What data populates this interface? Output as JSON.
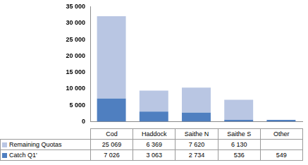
{
  "chart_data": {
    "type": "bar",
    "stacked": true,
    "grid": false,
    "categories": [
      "Cod",
      "Haddock",
      "Saithe N",
      "Saithe S",
      "Other"
    ],
    "series": [
      {
        "name": "Catch Q1'",
        "color": "#4f7fc0",
        "values": [
          7026,
          3063,
          2734,
          536,
          549
        ],
        "value_labels": [
          "7 026",
          "3 063",
          "2 734",
          "536",
          "549"
        ]
      },
      {
        "name": "Remaining Quotas",
        "color": "#b9c6e3",
        "values": [
          25069,
          6369,
          7620,
          6130,
          null
        ],
        "value_labels": [
          "25 069",
          "6 369",
          "7 620",
          "6 130",
          null
        ]
      }
    ],
    "ylim": [
      0,
      35000
    ],
    "yticks": [
      0,
      {
        "value": 5000,
        "label": "5 000"
      },
      {
        "value": 10000,
        "label": "10 000"
      },
      {
        "value": 15000,
        "label": "15 000"
      },
      {
        "value": 20000,
        "label": "20 000"
      },
      {
        "value": 25000,
        "label": "25 000"
      },
      {
        "value": 30000,
        "label": "30 000"
      },
      {
        "value": 35000,
        "label": "35 000"
      }
    ]
  }
}
